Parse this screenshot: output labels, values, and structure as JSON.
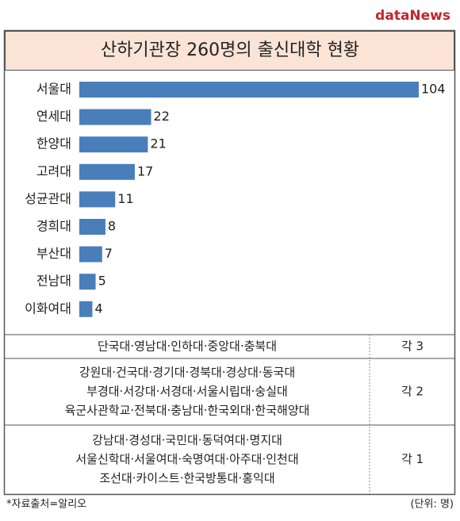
{
  "header": {
    "logo": "dataNews"
  },
  "chart_data": {
    "type": "bar",
    "orientation": "horizontal",
    "title": "산하기관장 260명의 출신대학 현황",
    "categories": [
      "서울대",
      "연세대",
      "한양대",
      "고려대",
      "성균관대",
      "경희대",
      "부산대",
      "전남대",
      "이화여대"
    ],
    "values": [
      104,
      22,
      21,
      17,
      11,
      8,
      7,
      5,
      4
    ],
    "color": "#4a7ebb"
  },
  "table": {
    "rows": [
      {
        "schools": [
          "단국대·영남대·인하대·중앙대·충북대"
        ],
        "count": "각 3"
      },
      {
        "schools": [
          "강원대·건국대·경기대·경북대·경상대·동국대",
          "부경대·서강대·서경대·서울시립대·숭실대",
          "육군사관학교·전북대·충남대·한국외대·한국해양대"
        ],
        "count": "각 2"
      },
      {
        "schools": [
          "강남대·경성대·국민대·동덕여대·명지대",
          "서울신학대·서울여대·숙명여대·아주대·인천대",
          "조선대·카이스트·한국방통대·홍익대"
        ],
        "count": "각 1"
      }
    ]
  },
  "footer": {
    "source": "*자료출처=알리오",
    "unit": "(단위: 명)"
  }
}
